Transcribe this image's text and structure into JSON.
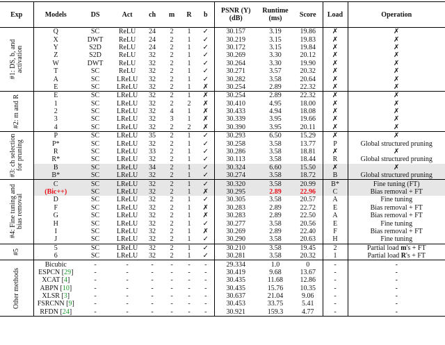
{
  "header": {
    "columns": [
      "Exp",
      "Models",
      "DS",
      "Act",
      "ch",
      "m",
      "R",
      "b",
      "PSNR (Y) (dB)",
      "Runtime (ms)",
      "Score",
      "Load",
      "Operation"
    ]
  },
  "groups": [
    {
      "label": "#1: DS, b, and activation",
      "rows": [
        {
          "cells": [
            "Q",
            "SC",
            "ReLU",
            "24",
            "2",
            "1",
            "✓",
            "30.157",
            "3.19",
            "19.86",
            "✗",
            "✗"
          ]
        },
        {
          "cells": [
            "X",
            "DWT",
            "ReLU",
            "24",
            "2",
            "1",
            "✓",
            "30.219",
            "3.15",
            "19.83",
            "✗",
            "✗"
          ]
        },
        {
          "cells": [
            "Y",
            "S2D",
            "ReLU",
            "24",
            "2",
            "1",
            "✓",
            "30.172",
            "3.15",
            "19.84",
            "✗",
            "✗"
          ]
        },
        {
          "cells": [
            "Z",
            "S2D",
            "ReLU",
            "32",
            "2",
            "1",
            "✓",
            "30.269",
            "3.30",
            "20.12",
            "✗",
            "✗"
          ]
        },
        {
          "cells": [
            "W",
            "DWT",
            "ReLU",
            "32",
            "2",
            "1",
            "✓",
            "30.264",
            "3.30",
            "19.90",
            "✗",
            "✗"
          ]
        },
        {
          "cells": [
            "T",
            "SC",
            "ReLU",
            "32",
            "2",
            "1",
            "✓",
            "30.271",
            "3.57",
            "20.32",
            "✗",
            "✗"
          ]
        },
        {
          "cells": [
            "A",
            "SC",
            "LReLU",
            "32",
            "2",
            "1",
            "✓",
            "30.282",
            "3.58",
            "20.64",
            "✗",
            "✗"
          ]
        },
        {
          "cells": [
            "E",
            "SC",
            "LReLU",
            "32",
            "2",
            "1",
            "✗",
            "30.254",
            "2.89",
            "22.32",
            "✗",
            "✗"
          ]
        }
      ]
    },
    {
      "label": "#2: m and R",
      "rows": [
        {
          "cells": [
            "E",
            "SC",
            "LReLU",
            "32",
            "2",
            "1",
            "✗",
            "30.254",
            "2.89",
            "22.32",
            "✗",
            "✗"
          ]
        },
        {
          "cells": [
            "1",
            "SC",
            "LReLU",
            "32",
            "2",
            "2",
            "✗",
            "30.410",
            "4.95",
            "18.00",
            "✗",
            "✗"
          ]
        },
        {
          "cells": [
            "2",
            "SC",
            "LReLU",
            "32",
            "4",
            "1",
            "✗",
            "30.433",
            "4.94",
            "18.08",
            "✗",
            "✗"
          ]
        },
        {
          "cells": [
            "3",
            "SC",
            "LReLU",
            "32",
            "3",
            "1",
            "✗",
            "30.339",
            "3.95",
            "19.66",
            "✗",
            "✗"
          ]
        },
        {
          "cells": [
            "4",
            "SC",
            "LReLU",
            "32",
            "2",
            "2",
            "✗",
            "30.390",
            "3.95",
            "20.11",
            "✗",
            "✗"
          ]
        }
      ]
    },
    {
      "label": "#3: ch selection for pruning",
      "rows": [
        {
          "cells": [
            "P",
            "SC",
            "LReLU",
            "35",
            "2",
            "1",
            "✓",
            "30.293",
            "6.50",
            "15.29",
            "✗",
            "✗"
          ]
        },
        {
          "cells": [
            "P*",
            "SC",
            "LReLU",
            "32",
            "2",
            "1",
            "✓",
            "30.258",
            "3.58",
            "13.77",
            "P",
            "Global structured pruning"
          ]
        },
        {
          "cells": [
            "R",
            "SC",
            "LReLU",
            "33",
            "2",
            "1",
            "✓",
            "30.286",
            "3.58",
            "18.81",
            "✗",
            "✗"
          ]
        },
        {
          "cells": [
            "R*",
            "SC",
            "LReLU",
            "32",
            "2",
            "1",
            "✓",
            "30.113",
            "3.58",
            "18.44",
            "R",
            "Global structured pruning"
          ]
        },
        {
          "shaded": true,
          "cells": [
            "B",
            "SC",
            "LReLU",
            "34",
            "2",
            "1",
            "✓",
            "30.324",
            "6.60",
            "15.50",
            "✗",
            "✗"
          ]
        },
        {
          "shaded": true,
          "cells": [
            "B*",
            "SC",
            "LReLU",
            "32",
            "2",
            "1",
            "✓",
            "30.274",
            "3.58",
            "18.72",
            "B",
            "Global structured pruning"
          ]
        }
      ]
    },
    {
      "label": "#4: Fine tuning and bias removal",
      "rows": [
        {
          "shaded": true,
          "cells": [
            "C",
            "SC",
            "LReLU",
            "32",
            "2",
            "1",
            "✓",
            "30.320",
            "3.58",
            "20.99",
            "B*",
            "Fine tuning (FT)"
          ]
        },
        {
          "shaded": true,
          "cells": [
            {
              "text": "(Bic++)",
              "color": "#e8101a",
              "bold": true
            },
            "SC",
            "LReLU",
            "32",
            "2",
            "1",
            "✗",
            "30.295",
            {
              "text": "2.89",
              "color": "#e8101a",
              "bold": true
            },
            {
              "text": "22.96",
              "color": "#e8101a",
              "bold": true
            },
            "C",
            "Bias removal + FT"
          ]
        },
        {
          "cells": [
            "D",
            "SC",
            "LReLU",
            "32",
            "2",
            "1",
            "✓",
            "30.305",
            "3.58",
            "20.57",
            "A",
            "Fine tuning"
          ]
        },
        {
          "cells": [
            "F",
            "SC",
            "LReLU",
            "32",
            "2",
            "1",
            "✗",
            "30.283",
            "2.89",
            "22.72",
            "E",
            "Bias removal + FT"
          ]
        },
        {
          "cells": [
            "G",
            "SC",
            "LReLU",
            "32",
            "2",
            "1",
            "✗",
            "30.283",
            "2.89",
            "22.50",
            "A",
            "Bias removal + FT"
          ]
        },
        {
          "cells": [
            "H",
            "SC",
            "LReLU",
            "32",
            "2",
            "1",
            "✓",
            "30.277",
            "3.58",
            "20.56",
            "E",
            "Fine tuning"
          ]
        },
        {
          "cells": [
            "I",
            "SC",
            "LReLU",
            "32",
            "2",
            "1",
            "✗",
            "30.269",
            "2.89",
            "22.40",
            "F",
            "Bias removal + FT"
          ]
        },
        {
          "cells": [
            "J",
            "SC",
            "LReLU",
            "32",
            "2",
            "1",
            "✓",
            "30.290",
            "3.58",
            "20.63",
            "H",
            "Fine tuning"
          ]
        }
      ]
    },
    {
      "label": "#5",
      "rows": [
        {
          "cells": [
            "5",
            "SC",
            "LReLU",
            "32",
            "2",
            "1",
            "✓",
            "30.210",
            "3.58",
            "19.45",
            "2",
            {
              "parts": [
                {
                  "text": "Partial load "
                },
                {
                  "text": "m",
                  "bold": true
                },
                {
                  "text": "'s + FT"
                }
              ]
            }
          ]
        },
        {
          "cells": [
            "6",
            "SC",
            "LReLU",
            "32",
            "2",
            "1",
            "✓",
            "30.281",
            "3.58",
            "20.32",
            "1",
            {
              "parts": [
                {
                  "text": "Partial load "
                },
                {
                  "text": "R",
                  "bold": true
                },
                {
                  "text": "'s + FT"
                }
              ]
            }
          ]
        }
      ]
    },
    {
      "label": "Other methods",
      "rows": [
        {
          "cells": [
            "Bicubic",
            "-",
            "-",
            "-",
            "-",
            "-",
            "-",
            "29.334",
            "1.0",
            "0",
            "-",
            "-"
          ]
        },
        {
          "cells": [
            {
              "name": "ESPCN",
              "cite": "29"
            },
            "-",
            "-",
            "-",
            "-",
            "-",
            "-",
            "30.419",
            "9.68",
            "13.67",
            "-",
            "-"
          ]
        },
        {
          "cells": [
            {
              "name": "XCAT",
              "cite": "4"
            },
            "-",
            "-",
            "-",
            "-",
            "-",
            "-",
            "30.435",
            "11.68",
            "12.86",
            "-",
            "-"
          ]
        },
        {
          "cells": [
            {
              "name": "ABPN",
              "cite": "10"
            },
            "-",
            "-",
            "-",
            "-",
            "-",
            "-",
            "30.435",
            "15.76",
            "10.35",
            "-",
            "-"
          ]
        },
        {
          "cells": [
            {
              "name": "XLSR",
              "cite": "3"
            },
            "-",
            "-",
            "-",
            "-",
            "-",
            "-",
            "30.637",
            "21.04",
            "9.06",
            "-",
            "-"
          ]
        },
        {
          "cells": [
            {
              "name": "FSRCNN",
              "cite": "9"
            },
            "-",
            "-",
            "-",
            "-",
            "-",
            "-",
            "30.453",
            "33.75",
            "5.41",
            "-",
            "-"
          ]
        },
        {
          "cells": [
            {
              "name": "RFDN",
              "cite": "24"
            },
            "-",
            "-",
            "-",
            "-",
            "-",
            "-",
            "30.921",
            "159.3",
            "4.77",
            "-",
            "-"
          ]
        }
      ]
    }
  ]
}
